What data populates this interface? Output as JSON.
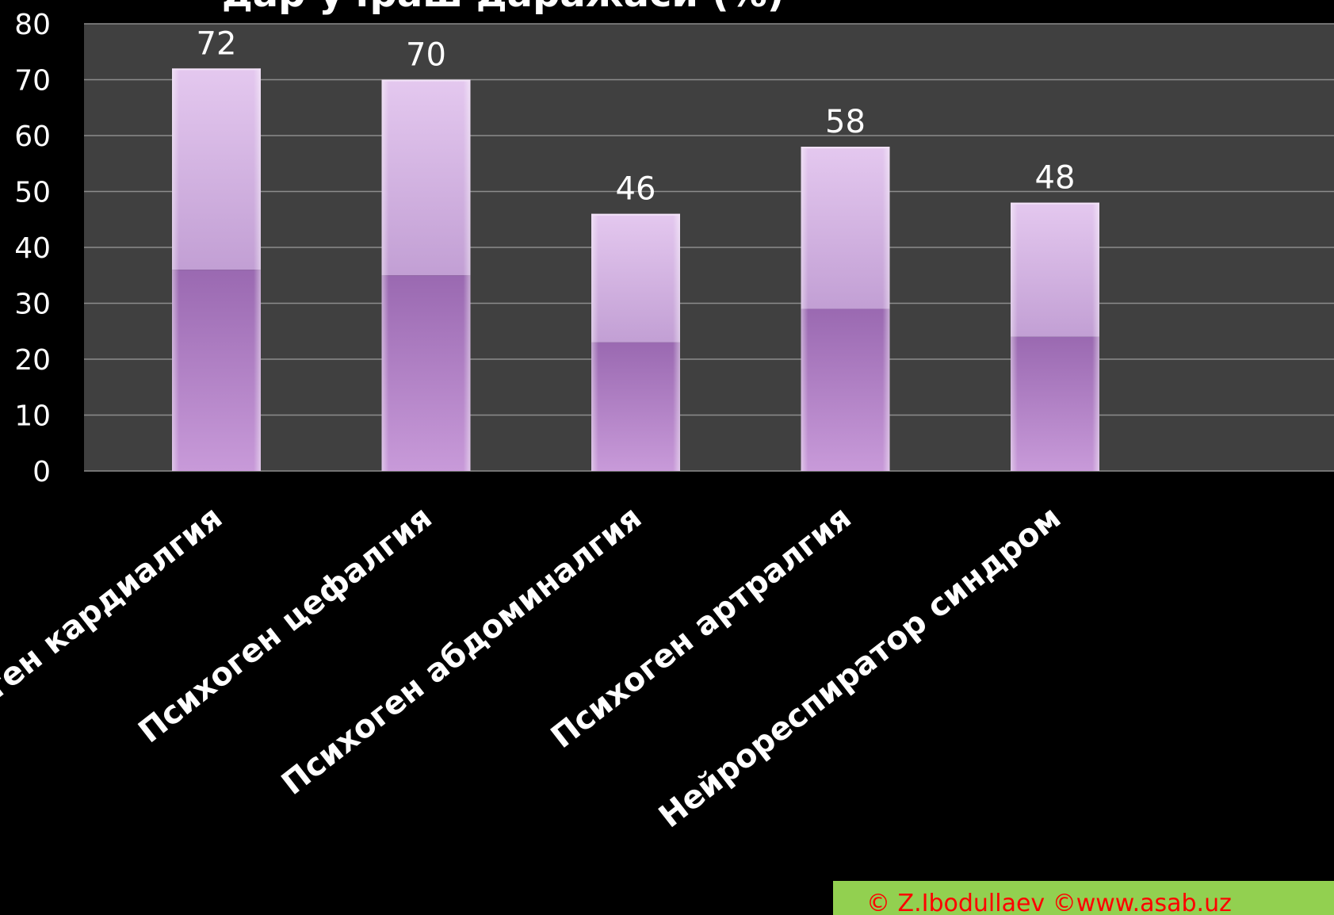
{
  "chart_data": {
    "type": "bar",
    "title": "дар учраш даражаси (%)",
    "categories": [
      "Психоген кардиалгия",
      "Психоген цефалгия",
      "Психоген абдоминалгия",
      "Психоген артралгия",
      "Нейрореспиратор синдром"
    ],
    "values": [
      72,
      70,
      46,
      58,
      48
    ],
    "data_labels": [
      "72",
      "70",
      "46",
      "58",
      "48"
    ],
    "ylim": [
      0,
      80
    ],
    "yticks": [
      "0",
      "10",
      "20",
      "30",
      "40",
      "50",
      "60",
      "70",
      "80"
    ],
    "xlabel": "",
    "ylabel": "",
    "grid": true,
    "legend": "none",
    "colors": {
      "plot_background": "#404040",
      "gridline": "#8c8c8c",
      "bar_top": "#d9b5e6",
      "bar_bottom": "#a373bb",
      "text": "#ffffff"
    }
  },
  "footer": {
    "copyright": "© Z.Ibodullaev  ©www.asab.uz",
    "background": "#92d050",
    "color": "#ff0000"
  }
}
